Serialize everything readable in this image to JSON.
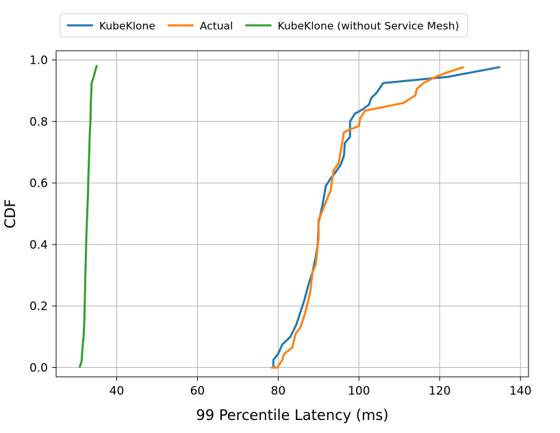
{
  "chart_data": {
    "type": "line",
    "title": "",
    "xlabel": "99 Percentile Latency (ms)",
    "ylabel": "CDF",
    "xlim": [
      25,
      142
    ],
    "ylim": [
      -0.03,
      1.03
    ],
    "xticks": [
      40,
      60,
      80,
      100,
      120,
      140
    ],
    "yticks": [
      0.0,
      0.2,
      0.4,
      0.6,
      0.8,
      1.0
    ],
    "xtick_labels": [
      "40",
      "60",
      "80",
      "100",
      "120",
      "140"
    ],
    "ytick_labels": [
      "0.0",
      "0.2",
      "0.4",
      "0.6",
      "0.8",
      "1.0"
    ],
    "grid": true,
    "legend_position": "top-center",
    "series": [
      {
        "name": "KubeKlone",
        "color": "#1f77b4",
        "points": [
          [
            78.8,
            0.0
          ],
          [
            78.8,
            0.025
          ],
          [
            80.0,
            0.045
          ],
          [
            81.0,
            0.075
          ],
          [
            83.0,
            0.1
          ],
          [
            84.5,
            0.14
          ],
          [
            85.5,
            0.18
          ],
          [
            86.5,
            0.22
          ],
          [
            87.5,
            0.27
          ],
          [
            88.5,
            0.31
          ],
          [
            89.3,
            0.36
          ],
          [
            89.8,
            0.4
          ],
          [
            90.0,
            0.47
          ],
          [
            91.0,
            0.53
          ],
          [
            91.8,
            0.59
          ],
          [
            93.0,
            0.615
          ],
          [
            94.5,
            0.64
          ],
          [
            95.5,
            0.66
          ],
          [
            96.3,
            0.69
          ],
          [
            96.5,
            0.73
          ],
          [
            97.8,
            0.75
          ],
          [
            97.8,
            0.8
          ],
          [
            99.0,
            0.825
          ],
          [
            101.0,
            0.84
          ],
          [
            102.5,
            0.855
          ],
          [
            103.0,
            0.875
          ],
          [
            104.5,
            0.895
          ],
          [
            106.0,
            0.925
          ],
          [
            122.0,
            0.945
          ],
          [
            135.0,
            0.977
          ]
        ]
      },
      {
        "name": "Actual",
        "color": "#ff7f0e",
        "points": [
          [
            78.2,
            0.0
          ],
          [
            79.8,
            0.0
          ],
          [
            81.0,
            0.025
          ],
          [
            81.5,
            0.045
          ],
          [
            83.5,
            0.065
          ],
          [
            84.3,
            0.11
          ],
          [
            85.5,
            0.13
          ],
          [
            86.5,
            0.17
          ],
          [
            87.3,
            0.21
          ],
          [
            88.0,
            0.25
          ],
          [
            88.5,
            0.31
          ],
          [
            89.3,
            0.335
          ],
          [
            90.0,
            0.42
          ],
          [
            90.0,
            0.48
          ],
          [
            91.0,
            0.51
          ],
          [
            92.0,
            0.545
          ],
          [
            93.0,
            0.575
          ],
          [
            93.7,
            0.64
          ],
          [
            95.0,
            0.665
          ],
          [
            96.3,
            0.765
          ],
          [
            98.0,
            0.775
          ],
          [
            100.0,
            0.785
          ],
          [
            100.3,
            0.81
          ],
          [
            101.5,
            0.835
          ],
          [
            111.0,
            0.86
          ],
          [
            114.0,
            0.885
          ],
          [
            114.3,
            0.905
          ],
          [
            116.0,
            0.925
          ],
          [
            119.0,
            0.945
          ],
          [
            122.0,
            0.96
          ],
          [
            126.0,
            0.977
          ]
        ]
      },
      {
        "name": "KubeKlone (without Service Mesh)",
        "color": "#2ca02c",
        "points": [
          [
            30.8,
            0.0
          ],
          [
            31.3,
            0.02
          ],
          [
            31.5,
            0.06
          ],
          [
            31.8,
            0.1
          ],
          [
            32.0,
            0.16
          ],
          [
            32.1,
            0.22
          ],
          [
            32.2,
            0.28
          ],
          [
            32.3,
            0.33
          ],
          [
            32.5,
            0.43
          ],
          [
            32.7,
            0.5
          ],
          [
            32.9,
            0.57
          ],
          [
            33.0,
            0.63
          ],
          [
            33.2,
            0.7
          ],
          [
            33.3,
            0.75
          ],
          [
            33.5,
            0.8
          ],
          [
            33.6,
            0.86
          ],
          [
            33.8,
            0.925
          ],
          [
            34.3,
            0.945
          ],
          [
            34.8,
            0.97
          ],
          [
            35.1,
            0.983
          ]
        ]
      }
    ]
  }
}
